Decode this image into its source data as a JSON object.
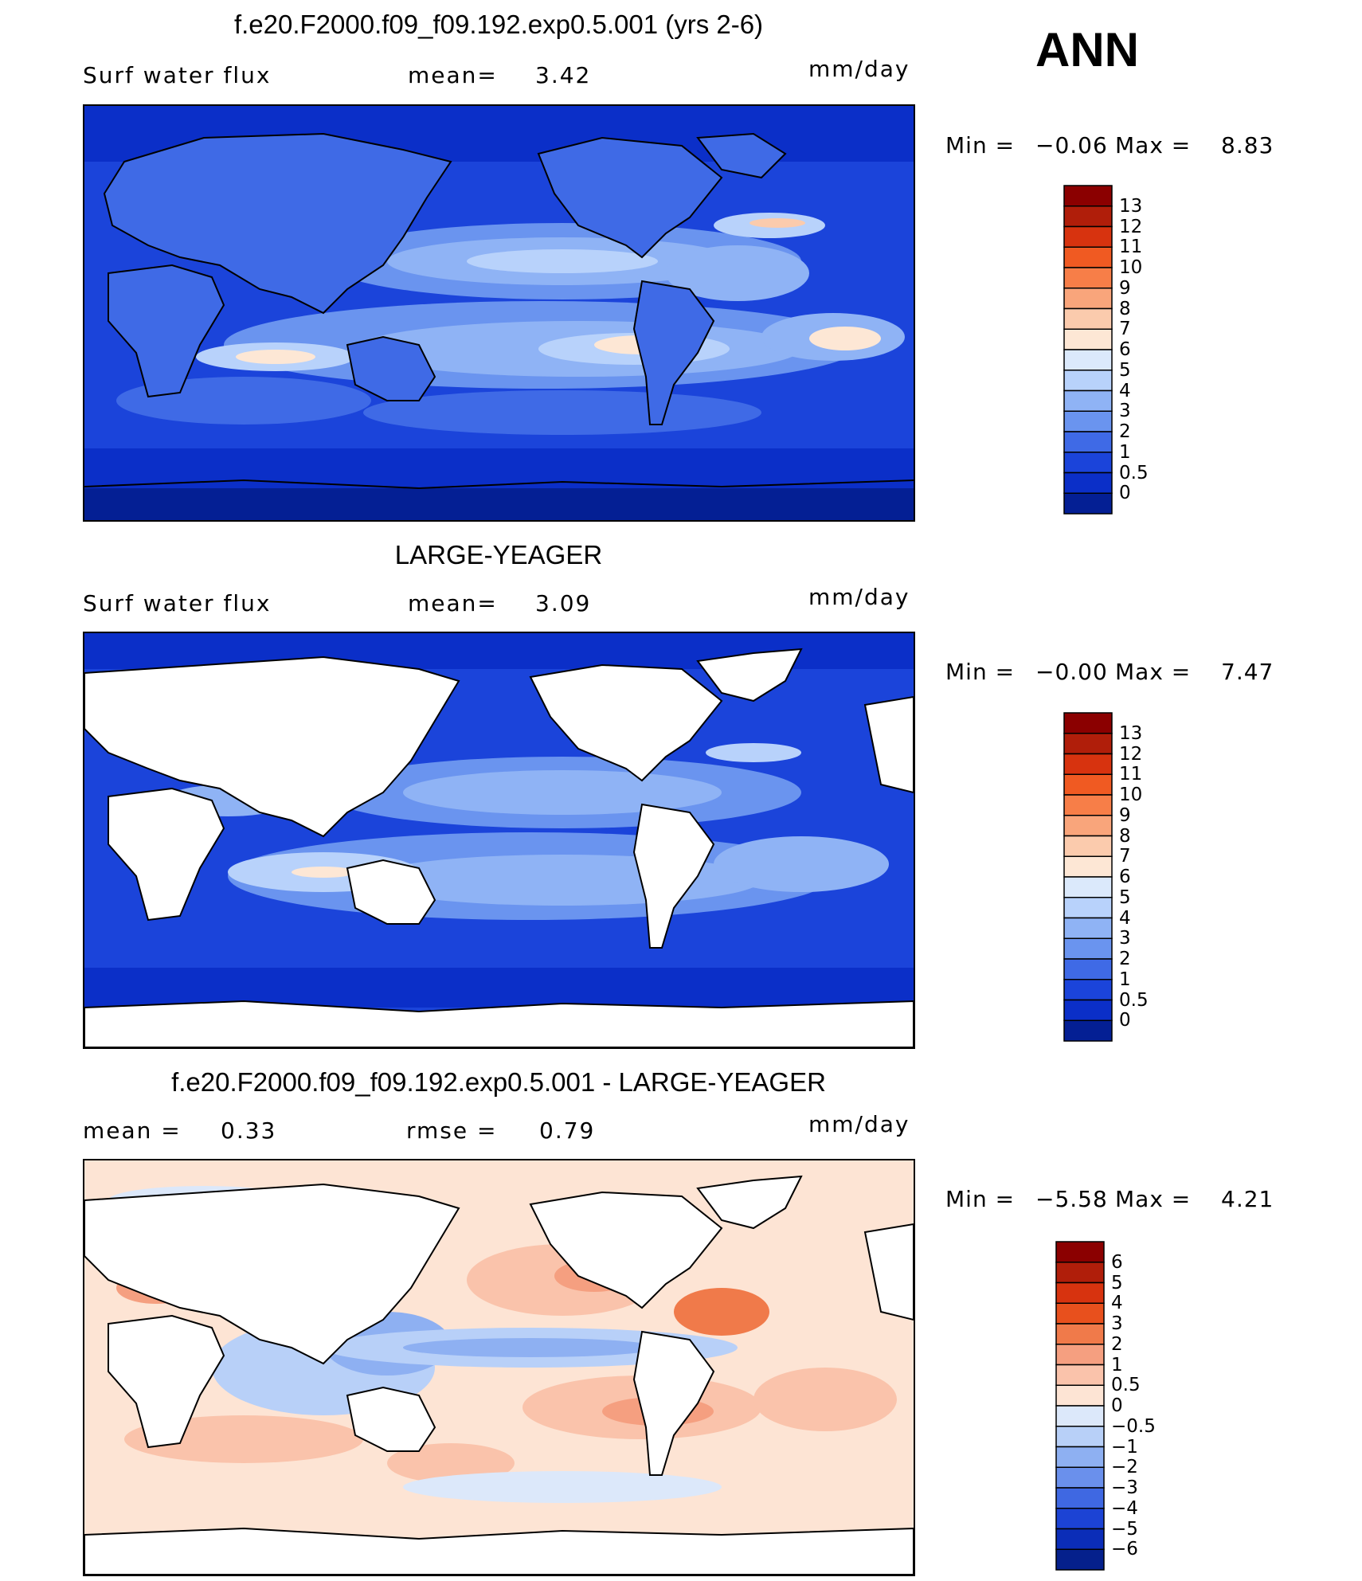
{
  "season": "ANN",
  "units": "mm/day",
  "panels": [
    {
      "id": "test",
      "title": "f.e20.F2000.f09_f09.192.exp0.5.001 (yrs 2-6)",
      "left_label": "Surf  water  flux",
      "mean_label": "mean=",
      "mean_value": "3.42",
      "min_label": "Min  =",
      "min_value": "−0.06",
      "max_label": "Max  =",
      "max_value": "8.83",
      "colorbar_levels": [
        "13",
        "12",
        "11",
        "10",
        "9",
        "8",
        "7",
        "6",
        "5",
        "4",
        "3",
        "2",
        "1",
        "0.5",
        "0"
      ],
      "colorbar_colors": [
        "#8b0000",
        "#b01e0a",
        "#d7330f",
        "#f05a22",
        "#f77e48",
        "#f9a57b",
        "#fbcbad",
        "#fde7d5",
        "#dbe9fb",
        "#b8d2fb",
        "#8fb3f5",
        "#6a94ef",
        "#3f6ae6",
        "#1b44da",
        "#0b2fc8",
        "#041f94"
      ]
    },
    {
      "id": "obs",
      "title": "LARGE-YEAGER",
      "left_label": "Surf  water  flux",
      "mean_label": "mean=",
      "mean_value": "3.09",
      "min_label": "Min  =",
      "min_value": "−0.00",
      "max_label": "Max  =",
      "max_value": "7.47",
      "colorbar_levels": [
        "13",
        "12",
        "11",
        "10",
        "9",
        "8",
        "7",
        "6",
        "5",
        "4",
        "3",
        "2",
        "1",
        "0.5",
        "0"
      ],
      "colorbar_colors": [
        "#8b0000",
        "#b01e0a",
        "#d7330f",
        "#f05a22",
        "#f77e48",
        "#f9a57b",
        "#fbcbad",
        "#fde7d5",
        "#dbe9fb",
        "#b8d2fb",
        "#8fb3f5",
        "#6a94ef",
        "#3f6ae6",
        "#1b44da",
        "#0b2fc8",
        "#041f94"
      ]
    },
    {
      "id": "diff",
      "title": "f.e20.F2000.f09_f09.192.exp0.5.001 - LARGE-YEAGER",
      "left_label": "mean  =",
      "left_value": "0.33",
      "mean_label": "rmse  =",
      "mean_value": "0.79",
      "min_label": "Min  =",
      "min_value": "−5.58",
      "max_label": "Max  =",
      "max_value": "4.21",
      "colorbar_levels": [
        "6",
        "5",
        "4",
        "3",
        "2",
        "1",
        "0.5",
        "0",
        "−0.5",
        "−1",
        "−2",
        "−3",
        "−4",
        "−5",
        "−6"
      ],
      "colorbar_colors": [
        "#8b0000",
        "#b01e0a",
        "#d7330f",
        "#e8501d",
        "#f07a4a",
        "#f59f80",
        "#fac3ab",
        "#fde4d4",
        "#dce8fa",
        "#b8d0f8",
        "#8eb0f2",
        "#6a90ec",
        "#3f68e2",
        "#1c43d4",
        "#0b2db8",
        "#05208c"
      ]
    }
  ]
}
